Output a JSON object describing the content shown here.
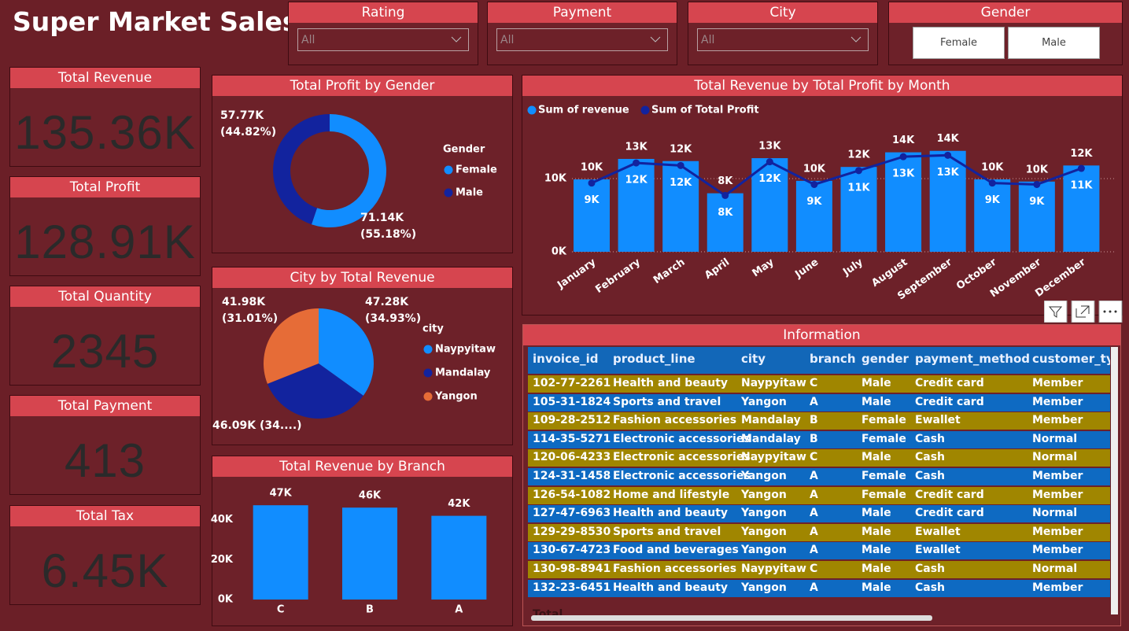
{
  "header": {
    "title": "Super Market Sales"
  },
  "slicers": [
    {
      "label": "Rating",
      "placeholder": "All"
    },
    {
      "label": "Payment",
      "placeholder": "All"
    },
    {
      "label": "City",
      "placeholder": "All"
    },
    {
      "label": "Gender",
      "options": [
        "Female",
        "Male"
      ]
    }
  ],
  "kpis": [
    {
      "label": "Total Revenue",
      "value": "135.36K"
    },
    {
      "label": "Total Profit",
      "value": "128.91K"
    },
    {
      "label": "Total Quantity",
      "value": "2345"
    },
    {
      "label": "Total Payment",
      "value": "413"
    },
    {
      "label": "Total Tax",
      "value": "6.45K"
    }
  ],
  "chart_data": [
    {
      "type": "donut",
      "title": "Total Profit by Gender",
      "legend_title": "Gender",
      "categories": [
        "Female",
        "Male"
      ],
      "values": [
        71140,
        57770
      ],
      "value_labels": [
        "71.14K (55.18%)",
        "57.77K (44.82%)"
      ],
      "colors": [
        "#118DFF",
        "#12239E"
      ]
    },
    {
      "type": "pie",
      "title": "City by Total Revenue",
      "legend_title": "city",
      "categories": [
        "Naypyitaw",
        "Mandalay",
        "Yangon"
      ],
      "values": [
        47280,
        46090,
        41980
      ],
      "value_labels": [
        "47.28K (34.93%)",
        "46.09K (34....)",
        "41.98K (31.01%)"
      ],
      "colors": [
        "#118DFF",
        "#12239E",
        "#E66C37"
      ]
    },
    {
      "type": "bar",
      "title": "Total Revenue by Branch",
      "categories": [
        "C",
        "B",
        "A"
      ],
      "values": [
        47280,
        46090,
        41980
      ],
      "value_labels": [
        "47K",
        "46K",
        "42K"
      ],
      "color": "#118DFF",
      "ylim": [
        0,
        58000
      ],
      "yticks": [
        {
          "value": 0,
          "label": "0K"
        },
        {
          "value": 20000,
          "label": "20K"
        },
        {
          "value": 40000,
          "label": "40K"
        }
      ],
      "grid": false
    },
    {
      "type": "combo",
      "title": "Total Revenue by Total Profit by Month",
      "categories": [
        "January",
        "February",
        "March",
        "April",
        "May",
        "June",
        "July",
        "August",
        "September",
        "October",
        "November",
        "December"
      ],
      "series": [
        {
          "name": "Sum of revenue",
          "kind": "bar",
          "color": "#118DFF",
          "values": [
            9900,
            12700,
            12400,
            8000,
            12800,
            9700,
            11600,
            13600,
            13800,
            9900,
            9600,
            11800
          ],
          "value_labels": [
            "10K",
            "13K",
            "12K",
            "8K",
            "13K",
            "10K",
            "12K",
            "14K",
            "14K",
            "10K",
            "10K",
            "12K"
          ]
        },
        {
          "name": "Sum of Total Profit",
          "kind": "line",
          "color": "#12239E",
          "values": [
            9400,
            12150,
            11800,
            7700,
            12300,
            9200,
            11100,
            13000,
            13200,
            9400,
            9200,
            11400
          ],
          "value_labels": [
            "9K",
            "12K",
            "12K",
            "8K",
            "12K",
            "9K",
            "11K",
            "13K",
            "13K",
            "9K",
            "9K",
            "11K"
          ]
        }
      ],
      "ylim": [
        0,
        17000
      ],
      "yticks": [
        {
          "value": 0,
          "label": "0K"
        },
        {
          "value": 10000,
          "label": "10K"
        }
      ],
      "grid": true
    }
  ],
  "table": {
    "title": "Information",
    "columns": [
      "invoice_id",
      "product_line",
      "city",
      "branch",
      "gender",
      "payment_method",
      "customer_type"
    ],
    "rows": [
      [
        "102-77-2261",
        "Health and beauty",
        "Naypyitaw",
        "C",
        "Male",
        "Credit card",
        "Member"
      ],
      [
        "105-31-1824",
        "Sports and travel",
        "Yangon",
        "A",
        "Male",
        "Credit card",
        "Member"
      ],
      [
        "109-28-2512",
        "Fashion accessories",
        "Mandalay",
        "B",
        "Female",
        "Ewallet",
        "Member"
      ],
      [
        "114-35-5271",
        "Electronic accessories",
        "Mandalay",
        "B",
        "Female",
        "Cash",
        "Normal"
      ],
      [
        "120-06-4233",
        "Electronic accessories",
        "Naypyitaw",
        "C",
        "Male",
        "Cash",
        "Normal"
      ],
      [
        "124-31-1458",
        "Electronic accessories",
        "Yangon",
        "A",
        "Female",
        "Cash",
        "Member"
      ],
      [
        "126-54-1082",
        "Home and lifestyle",
        "Yangon",
        "A",
        "Female",
        "Credit card",
        "Member"
      ],
      [
        "127-47-6963",
        "Health and beauty",
        "Yangon",
        "A",
        "Male",
        "Credit card",
        "Normal"
      ],
      [
        "129-29-8530",
        "Sports and travel",
        "Yangon",
        "A",
        "Male",
        "Ewallet",
        "Member"
      ],
      [
        "130-67-4723",
        "Food and beverages",
        "Yangon",
        "A",
        "Male",
        "Ewallet",
        "Member"
      ],
      [
        "130-98-8941",
        "Fashion accessories",
        "Naypyitaw",
        "C",
        "Male",
        "Cash",
        "Normal"
      ],
      [
        "132-23-6451",
        "Health and beauty",
        "Yangon",
        "A",
        "Male",
        "Cash",
        "Member"
      ]
    ],
    "total_label": "Total"
  }
}
